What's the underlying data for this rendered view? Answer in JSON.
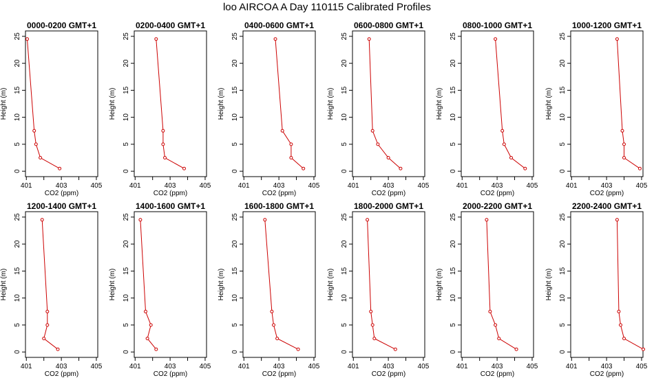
{
  "title": "loo AIRCOA A  Day 110115  Calibrated Profiles",
  "colors": {
    "series": "#cc0000",
    "axis": "#000000"
  },
  "chart_data": [
    {
      "type": "line",
      "title": "0000-0200 GMT+1",
      "xlabel": "CO2 (ppm)",
      "ylabel": "Height (m)",
      "xlim": [
        401,
        405
      ],
      "ylim": [
        0,
        25
      ],
      "xticks": [
        401,
        403,
        405
      ],
      "yticks": [
        0,
        5,
        10,
        15,
        20,
        25
      ],
      "series": [
        {
          "x": [
            402.9,
            401.8,
            401.55,
            401.45,
            401.05
          ],
          "y": [
            0.5,
            2.5,
            5,
            7.5,
            24.5
          ]
        }
      ]
    },
    {
      "type": "line",
      "title": "0200-0400 GMT+1",
      "xlabel": "CO2 (ppm)",
      "ylabel": "Height (m)",
      "xlim": [
        401,
        405
      ],
      "ylim": [
        0,
        25
      ],
      "xticks": [
        401,
        403,
        405
      ],
      "yticks": [
        0,
        5,
        10,
        15,
        20,
        25
      ],
      "series": [
        {
          "x": [
            403.8,
            402.7,
            402.6,
            402.6,
            402.2
          ],
          "y": [
            0.5,
            2.5,
            5,
            7.5,
            24.5
          ]
        }
      ]
    },
    {
      "type": "line",
      "title": "0400-0600 GMT+1",
      "xlabel": "CO2 (ppm)",
      "ylabel": "Height (m)",
      "xlim": [
        401,
        405
      ],
      "ylim": [
        0,
        25
      ],
      "xticks": [
        401,
        403,
        405
      ],
      "yticks": [
        0,
        5,
        10,
        15,
        20,
        25
      ],
      "series": [
        {
          "x": [
            404.4,
            403.7,
            403.7,
            403.2,
            402.8
          ],
          "y": [
            0.5,
            2.5,
            5,
            7.5,
            24.5
          ]
        }
      ]
    },
    {
      "type": "line",
      "title": "0600-0800 GMT+1",
      "xlabel": "CO2 (ppm)",
      "ylabel": "Height (m)",
      "xlim": [
        401,
        405
      ],
      "ylim": [
        0,
        25
      ],
      "xticks": [
        401,
        403,
        405
      ],
      "yticks": [
        0,
        5,
        10,
        15,
        20,
        25
      ],
      "series": [
        {
          "x": [
            403.7,
            403.0,
            402.4,
            402.1,
            401.9
          ],
          "y": [
            0.5,
            2.5,
            5,
            7.5,
            24.5
          ]
        }
      ]
    },
    {
      "type": "line",
      "title": "0800-1000 GMT+1",
      "xlabel": "CO2 (ppm)",
      "ylabel": "Height (m)",
      "xlim": [
        401,
        405
      ],
      "ylim": [
        0,
        25
      ],
      "xticks": [
        401,
        403,
        405
      ],
      "yticks": [
        0,
        5,
        10,
        15,
        20,
        25
      ],
      "series": [
        {
          "x": [
            404.6,
            403.8,
            403.4,
            403.3,
            402.9
          ],
          "y": [
            0.5,
            2.5,
            5,
            7.5,
            24.5
          ]
        }
      ]
    },
    {
      "type": "line",
      "title": "1000-1200 GMT+1",
      "xlabel": "CO2 (ppm)",
      "ylabel": "Height (m)",
      "xlim": [
        401,
        405
      ],
      "ylim": [
        0,
        25
      ],
      "xticks": [
        401,
        403,
        405
      ],
      "yticks": [
        0,
        5,
        10,
        15,
        20,
        25
      ],
      "series": [
        {
          "x": [
            404.9,
            404.0,
            404.0,
            403.9,
            403.6
          ],
          "y": [
            0.5,
            2.5,
            5,
            7.5,
            24.5
          ]
        }
      ]
    },
    {
      "type": "line",
      "title": "1200-1400 GMT+1",
      "xlabel": "CO2 (ppm)",
      "ylabel": "Height (m)",
      "xlim": [
        401,
        405
      ],
      "ylim": [
        0,
        25
      ],
      "xticks": [
        401,
        403,
        405
      ],
      "yticks": [
        0,
        5,
        10,
        15,
        20,
        25
      ],
      "series": [
        {
          "x": [
            402.8,
            402.0,
            402.2,
            402.2,
            401.9
          ],
          "y": [
            0.5,
            2.5,
            5,
            7.5,
            24.5
          ]
        }
      ]
    },
    {
      "type": "line",
      "title": "1400-1600 GMT+1",
      "xlabel": "CO2 (ppm)",
      "ylabel": "Height (m)",
      "xlim": [
        401,
        405
      ],
      "ylim": [
        0,
        25
      ],
      "xticks": [
        401,
        403,
        405
      ],
      "yticks": [
        0,
        5,
        10,
        15,
        20,
        25
      ],
      "series": [
        {
          "x": [
            402.2,
            401.7,
            401.9,
            401.6,
            401.3
          ],
          "y": [
            0.5,
            2.5,
            5,
            7.5,
            24.5
          ]
        }
      ]
    },
    {
      "type": "line",
      "title": "1600-1800 GMT+1",
      "xlabel": "CO2 (ppm)",
      "ylabel": "Height (m)",
      "xlim": [
        401,
        405
      ],
      "ylim": [
        0,
        25
      ],
      "xticks": [
        401,
        403,
        405
      ],
      "yticks": [
        0,
        5,
        10,
        15,
        20,
        25
      ],
      "series": [
        {
          "x": [
            404.1,
            402.9,
            402.7,
            402.6,
            402.2
          ],
          "y": [
            0.5,
            2.5,
            5,
            7.5,
            24.5
          ]
        }
      ]
    },
    {
      "type": "line",
      "title": "1800-2000 GMT+1",
      "xlabel": "CO2 (ppm)",
      "ylabel": "Height (m)",
      "xlim": [
        401,
        405
      ],
      "ylim": [
        0,
        25
      ],
      "xticks": [
        401,
        403,
        405
      ],
      "yticks": [
        0,
        5,
        10,
        15,
        20,
        25
      ],
      "series": [
        {
          "x": [
            403.4,
            402.2,
            402.1,
            402.0,
            401.8
          ],
          "y": [
            0.5,
            2.5,
            5,
            7.5,
            24.5
          ]
        }
      ]
    },
    {
      "type": "line",
      "title": "2000-2200 GMT+1",
      "xlabel": "CO2 (ppm)",
      "ylabel": "Height (m)",
      "xlim": [
        401,
        405
      ],
      "ylim": [
        0,
        25
      ],
      "xticks": [
        401,
        403,
        405
      ],
      "yticks": [
        0,
        5,
        10,
        15,
        20,
        25
      ],
      "series": [
        {
          "x": [
            404.1,
            403.1,
            402.9,
            402.6,
            402.4
          ],
          "y": [
            0.5,
            2.5,
            5,
            7.5,
            24.5
          ]
        }
      ]
    },
    {
      "type": "line",
      "title": "2200-2400 GMT+1",
      "xlabel": "CO2 (ppm)",
      "ylabel": "Height (m)",
      "xlim": [
        401,
        405
      ],
      "ylim": [
        0,
        25
      ],
      "xticks": [
        401,
        403,
        405
      ],
      "yticks": [
        0,
        5,
        10,
        15,
        20,
        25
      ],
      "series": [
        {
          "x": [
            405.1,
            404.0,
            403.8,
            403.7,
            403.6
          ],
          "y": [
            0.5,
            2.5,
            5,
            7.5,
            24.5
          ]
        }
      ]
    }
  ]
}
